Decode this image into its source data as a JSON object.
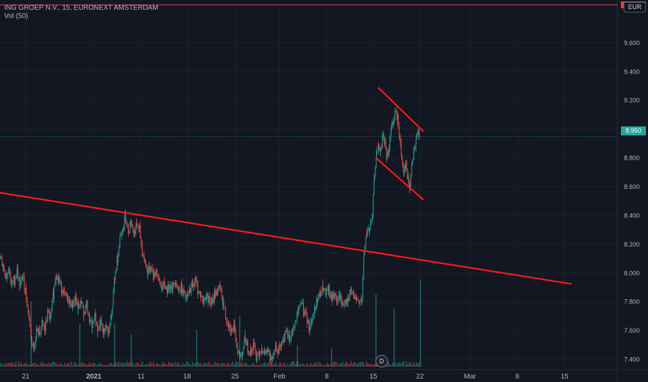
{
  "header": {
    "symbol_line": "ING GROEP N.V., 15, EURONEXT AMSTERDAM",
    "volume_label": "Vol (50)"
  },
  "currency_badge": "EUR",
  "event_marker": "D",
  "colors": {
    "background": "#131722",
    "up": "#26a69a",
    "down": "#ef5350",
    "trendline": "#ff1a1a",
    "grid": "#1e222d",
    "axis_text": "#b2b5be"
  },
  "chart_data": {
    "type": "candlestick",
    "title": "ING GROEP N.V., 15, EURONEXT AMSTERDAM",
    "xlabel": "",
    "ylabel": "",
    "ylim": [
      7.34,
      9.86
    ],
    "y_ticks": [
      "7.400",
      "7.600",
      "7.800",
      "8.000",
      "8.200",
      "8.400",
      "8.600",
      "8.800",
      "9.000",
      "9.200",
      "9.400",
      "9.600"
    ],
    "x_ticks": [
      "21",
      "2021",
      "11",
      "18",
      "25",
      "Feb",
      "8",
      "15",
      "22",
      "Mar",
      "8",
      "15"
    ],
    "current_price": "8.950",
    "price_path": [
      [
        0,
        8.1
      ],
      [
        4,
        8.05
      ],
      [
        8,
        7.98
      ],
      [
        12,
        8.04
      ],
      [
        16,
        7.92
      ],
      [
        20,
        7.95
      ],
      [
        24,
        8.02
      ],
      [
        28,
        7.9
      ],
      [
        32,
        7.98
      ],
      [
        36,
        7.88
      ],
      [
        40,
        7.75
      ],
      [
        44,
        7.55
      ],
      [
        48,
        7.48
      ],
      [
        52,
        7.6
      ],
      [
        56,
        7.58
      ],
      [
        60,
        7.65
      ],
      [
        64,
        7.6
      ],
      [
        68,
        7.72
      ],
      [
        72,
        7.68
      ],
      [
        76,
        7.85
      ],
      [
        80,
        8.0
      ],
      [
        84,
        7.95
      ],
      [
        88,
        7.9
      ],
      [
        92,
        7.85
      ],
      [
        96,
        7.82
      ],
      [
        100,
        7.8
      ],
      [
        104,
        7.78
      ],
      [
        108,
        7.82
      ],
      [
        112,
        7.75
      ],
      [
        116,
        7.8
      ],
      [
        120,
        7.72
      ],
      [
        124,
        7.78
      ],
      [
        128,
        7.68
      ],
      [
        132,
        7.62
      ],
      [
        136,
        7.7
      ],
      [
        140,
        7.6
      ],
      [
        144,
        7.65
      ],
      [
        148,
        7.58
      ],
      [
        152,
        7.62
      ],
      [
        156,
        7.6
      ],
      [
        160,
        7.7
      ],
      [
        164,
        7.95
      ],
      [
        168,
        8.1
      ],
      [
        172,
        8.25
      ],
      [
        176,
        8.32
      ],
      [
        180,
        8.4
      ],
      [
        184,
        8.3
      ],
      [
        188,
        8.36
      ],
      [
        192,
        8.28
      ],
      [
        196,
        8.34
      ],
      [
        200,
        8.3
      ],
      [
        204,
        8.15
      ],
      [
        208,
        8.08
      ],
      [
        212,
        8.0
      ],
      [
        216,
        8.05
      ],
      [
        220,
        7.98
      ],
      [
        224,
        8.02
      ],
      [
        228,
        7.95
      ],
      [
        232,
        7.9
      ],
      [
        236,
        7.92
      ],
      [
        240,
        7.88
      ],
      [
        244,
        7.92
      ],
      [
        248,
        7.9
      ],
      [
        252,
        7.95
      ],
      [
        256,
        7.88
      ],
      [
        260,
        7.9
      ],
      [
        264,
        7.85
      ],
      [
        268,
        7.82
      ],
      [
        272,
        7.88
      ],
      [
        276,
        7.92
      ],
      [
        280,
        7.95
      ],
      [
        284,
        7.88
      ],
      [
        288,
        7.85
      ],
      [
        292,
        7.8
      ],
      [
        296,
        7.84
      ],
      [
        300,
        7.82
      ],
      [
        304,
        7.78
      ],
      [
        308,
        7.85
      ],
      [
        312,
        7.88
      ],
      [
        316,
        7.9
      ],
      [
        320,
        7.8
      ],
      [
        324,
        7.7
      ],
      [
        328,
        7.65
      ],
      [
        332,
        7.6
      ],
      [
        336,
        7.62
      ],
      [
        340,
        7.5
      ],
      [
        344,
        7.42
      ],
      [
        348,
        7.45
      ],
      [
        352,
        7.55
      ],
      [
        356,
        7.48
      ],
      [
        360,
        7.45
      ],
      [
        364,
        7.5
      ],
      [
        368,
        7.42
      ],
      [
        372,
        7.45
      ],
      [
        376,
        7.48
      ],
      [
        380,
        7.44
      ],
      [
        384,
        7.46
      ],
      [
        388,
        7.4
      ],
      [
        392,
        7.44
      ],
      [
        396,
        7.5
      ],
      [
        400,
        7.46
      ],
      [
        404,
        7.52
      ],
      [
        408,
        7.55
      ],
      [
        412,
        7.58
      ],
      [
        416,
        7.54
      ],
      [
        420,
        7.6
      ],
      [
        424,
        7.65
      ],
      [
        428,
        7.72
      ],
      [
        432,
        7.8
      ],
      [
        436,
        7.75
      ],
      [
        440,
        7.7
      ],
      [
        444,
        7.62
      ],
      [
        448,
        7.68
      ],
      [
        452,
        7.75
      ],
      [
        456,
        7.82
      ],
      [
        460,
        7.85
      ],
      [
        464,
        7.9
      ],
      [
        468,
        7.85
      ],
      [
        472,
        7.88
      ],
      [
        476,
        7.82
      ],
      [
        480,
        7.86
      ],
      [
        484,
        7.8
      ],
      [
        488,
        7.84
      ],
      [
        492,
        7.78
      ],
      [
        496,
        7.82
      ],
      [
        500,
        7.8
      ],
      [
        504,
        7.88
      ],
      [
        508,
        7.84
      ],
      [
        512,
        7.8
      ],
      [
        516,
        7.82
      ],
      [
        520,
        7.8
      ],
      [
        523,
        8.15
      ],
      [
        527,
        8.28
      ],
      [
        531,
        8.3
      ],
      [
        535,
        8.38
      ],
      [
        538,
        8.7
      ],
      [
        541,
        8.82
      ],
      [
        544,
        8.88
      ],
      [
        547,
        8.84
      ],
      [
        550,
        8.96
      ],
      [
        553,
        8.9
      ],
      [
        556,
        8.8
      ],
      [
        559,
        8.86
      ],
      [
        562,
        9.0
      ],
      [
        565,
        9.05
      ],
      [
        568,
        9.12
      ],
      [
        571,
        9.08
      ],
      [
        574,
        8.95
      ],
      [
        577,
        8.8
      ],
      [
        580,
        8.72
      ],
      [
        583,
        8.76
      ],
      [
        586,
        8.65
      ],
      [
        589,
        8.6
      ],
      [
        592,
        8.78
      ],
      [
        595,
        8.86
      ],
      [
        598,
        8.92
      ],
      [
        601,
        8.98
      ],
      [
        603,
        8.95
      ]
    ],
    "volume_spikes": [
      [
        44,
        0.18
      ],
      [
        114,
        0.12
      ],
      [
        164,
        0.12
      ],
      [
        188,
        0.09
      ],
      [
        282,
        0.1
      ],
      [
        344,
        0.14
      ],
      [
        540,
        0.2
      ],
      [
        566,
        0.16
      ],
      [
        604,
        0.24
      ],
      [
        427,
        0.06
      ],
      [
        476,
        0.05
      ]
    ],
    "trendlines": [
      {
        "from": [
          -14,
          8.57
        ],
        "to": [
          822,
          7.925
        ]
      },
      {
        "from": [
          544,
          9.29
        ],
        "to": [
          609,
          8.985
        ]
      },
      {
        "from": [
          541,
          8.8
        ],
        "to": [
          609,
          8.51
        ]
      }
    ]
  }
}
